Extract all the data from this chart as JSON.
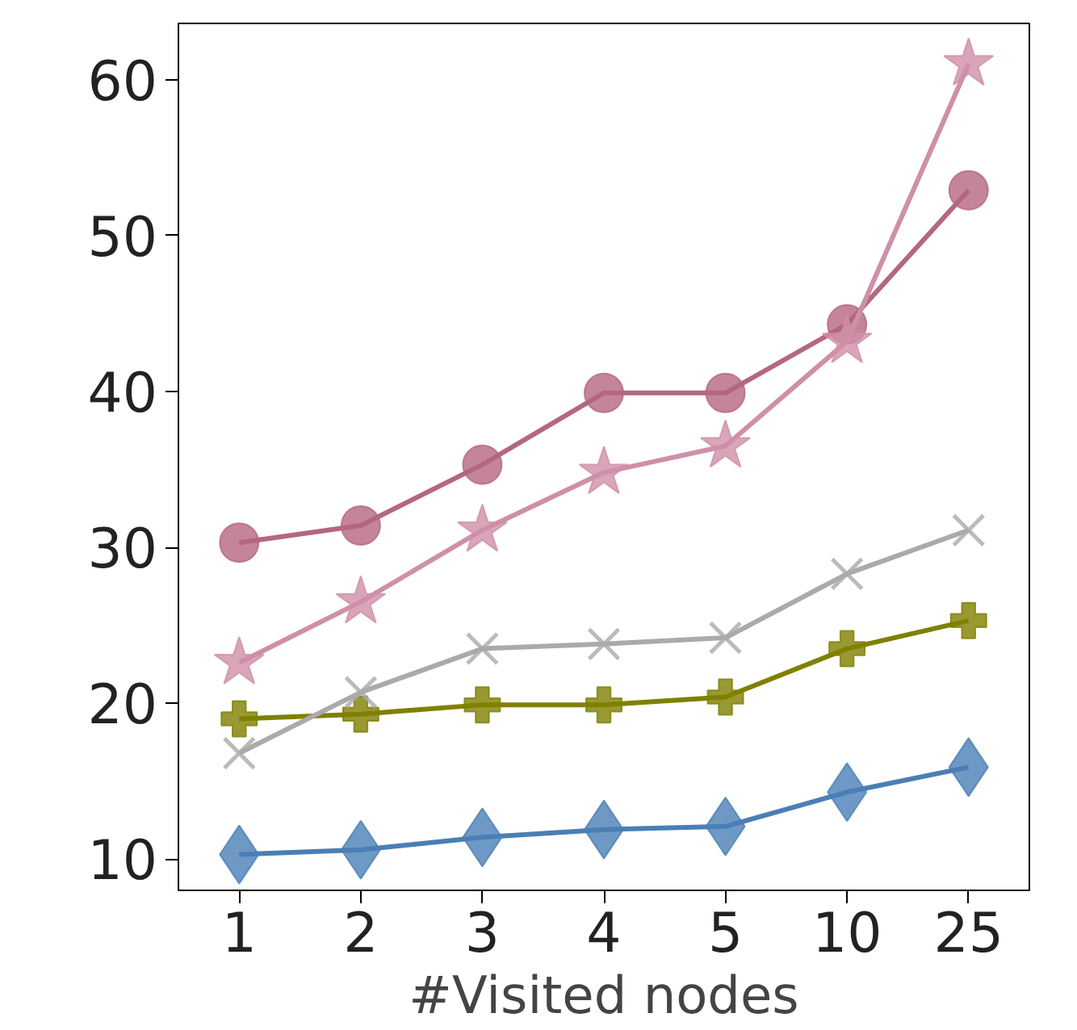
{
  "chart_data": {
    "type": "line",
    "xlabel": "#Visited nodes",
    "categories": [
      "1",
      "2",
      "3",
      "4",
      "5",
      "10",
      "25"
    ],
    "ylim": [
      8,
      63.6
    ],
    "yticks": [
      10,
      20,
      30,
      40,
      50,
      60
    ],
    "grid": false,
    "line_style": "solid",
    "series": [
      {
        "color": "#4a7fb5",
        "marker": "diamond",
        "values": [
          10.3,
          10.6,
          11.4,
          11.9,
          12.1,
          14.3,
          15.9
        ]
      },
      {
        "color": "#808000",
        "marker": "cross",
        "values": [
          19.0,
          19.3,
          19.9,
          19.9,
          20.4,
          23.5,
          25.3
        ]
      },
      {
        "color": "#aaaaaa",
        "marker": "x",
        "values": [
          16.8,
          20.7,
          23.5,
          23.8,
          24.2,
          28.3,
          31.1
        ]
      },
      {
        "color": "#b5677f",
        "marker": "circle",
        "values": [
          30.3,
          31.4,
          35.3,
          39.9,
          39.9,
          44.3,
          52.9
        ]
      },
      {
        "color": "#cf8fa8",
        "marker": "star",
        "values": [
          22.6,
          26.5,
          31.1,
          34.8,
          36.5,
          43.2,
          61.0
        ]
      }
    ]
  }
}
